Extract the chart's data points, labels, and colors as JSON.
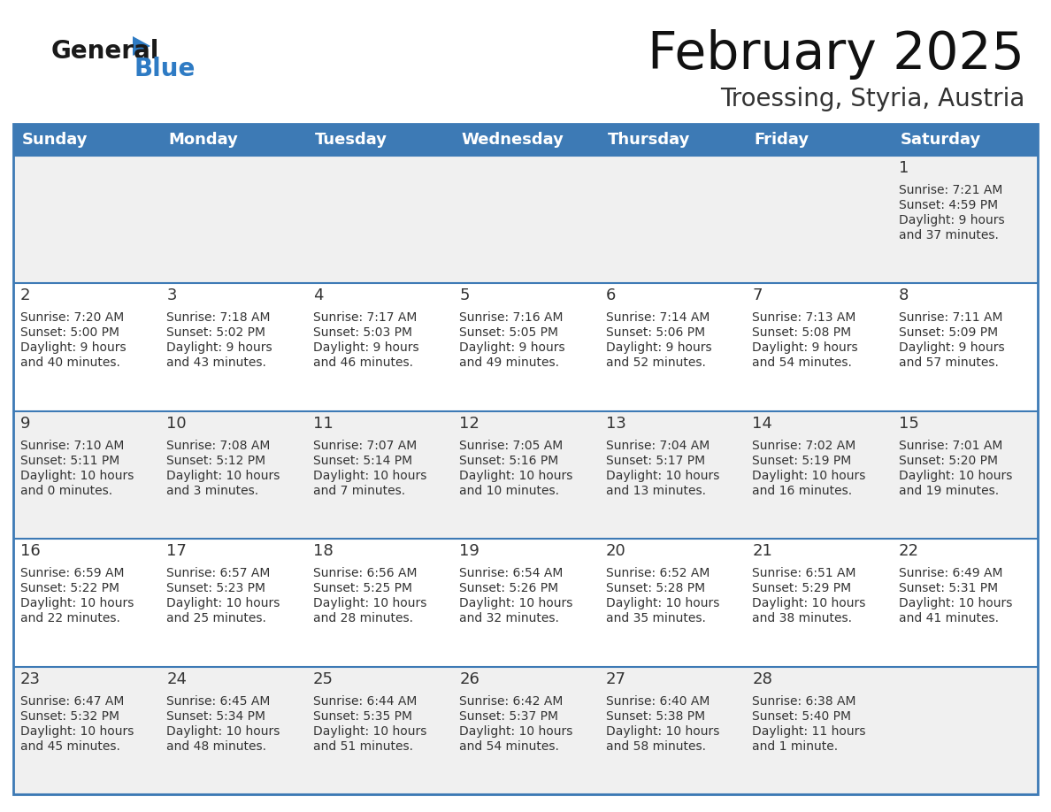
{
  "title": "February 2025",
  "subtitle": "Troessing, Styria, Austria",
  "days_of_week": [
    "Sunday",
    "Monday",
    "Tuesday",
    "Wednesday",
    "Thursday",
    "Friday",
    "Saturday"
  ],
  "header_bg": "#3d7ab5",
  "header_text": "#ffffff",
  "row_bg_even": "#f0f0f0",
  "row_bg_odd": "#ffffff",
  "border_color": "#3d7ab5",
  "text_color": "#333333",
  "calendar_data": [
    [
      null,
      null,
      null,
      null,
      null,
      null,
      {
        "day": "1",
        "sunrise": "7:21 AM",
        "sunset": "4:59 PM",
        "daylight_line1": "Daylight: 9 hours",
        "daylight_line2": "and 37 minutes."
      }
    ],
    [
      {
        "day": "2",
        "sunrise": "7:20 AM",
        "sunset": "5:00 PM",
        "daylight_line1": "Daylight: 9 hours",
        "daylight_line2": "and 40 minutes."
      },
      {
        "day": "3",
        "sunrise": "7:18 AM",
        "sunset": "5:02 PM",
        "daylight_line1": "Daylight: 9 hours",
        "daylight_line2": "and 43 minutes."
      },
      {
        "day": "4",
        "sunrise": "7:17 AM",
        "sunset": "5:03 PM",
        "daylight_line1": "Daylight: 9 hours",
        "daylight_line2": "and 46 minutes."
      },
      {
        "day": "5",
        "sunrise": "7:16 AM",
        "sunset": "5:05 PM",
        "daylight_line1": "Daylight: 9 hours",
        "daylight_line2": "and 49 minutes."
      },
      {
        "day": "6",
        "sunrise": "7:14 AM",
        "sunset": "5:06 PM",
        "daylight_line1": "Daylight: 9 hours",
        "daylight_line2": "and 52 minutes."
      },
      {
        "day": "7",
        "sunrise": "7:13 AM",
        "sunset": "5:08 PM",
        "daylight_line1": "Daylight: 9 hours",
        "daylight_line2": "and 54 minutes."
      },
      {
        "day": "8",
        "sunrise": "7:11 AM",
        "sunset": "5:09 PM",
        "daylight_line1": "Daylight: 9 hours",
        "daylight_line2": "and 57 minutes."
      }
    ],
    [
      {
        "day": "9",
        "sunrise": "7:10 AM",
        "sunset": "5:11 PM",
        "daylight_line1": "Daylight: 10 hours",
        "daylight_line2": "and 0 minutes."
      },
      {
        "day": "10",
        "sunrise": "7:08 AM",
        "sunset": "5:12 PM",
        "daylight_line1": "Daylight: 10 hours",
        "daylight_line2": "and 3 minutes."
      },
      {
        "day": "11",
        "sunrise": "7:07 AM",
        "sunset": "5:14 PM",
        "daylight_line1": "Daylight: 10 hours",
        "daylight_line2": "and 7 minutes."
      },
      {
        "day": "12",
        "sunrise": "7:05 AM",
        "sunset": "5:16 PM",
        "daylight_line1": "Daylight: 10 hours",
        "daylight_line2": "and 10 minutes."
      },
      {
        "day": "13",
        "sunrise": "7:04 AM",
        "sunset": "5:17 PM",
        "daylight_line1": "Daylight: 10 hours",
        "daylight_line2": "and 13 minutes."
      },
      {
        "day": "14",
        "sunrise": "7:02 AM",
        "sunset": "5:19 PM",
        "daylight_line1": "Daylight: 10 hours",
        "daylight_line2": "and 16 minutes."
      },
      {
        "day": "15",
        "sunrise": "7:01 AM",
        "sunset": "5:20 PM",
        "daylight_line1": "Daylight: 10 hours",
        "daylight_line2": "and 19 minutes."
      }
    ],
    [
      {
        "day": "16",
        "sunrise": "6:59 AM",
        "sunset": "5:22 PM",
        "daylight_line1": "Daylight: 10 hours",
        "daylight_line2": "and 22 minutes."
      },
      {
        "day": "17",
        "sunrise": "6:57 AM",
        "sunset": "5:23 PM",
        "daylight_line1": "Daylight: 10 hours",
        "daylight_line2": "and 25 minutes."
      },
      {
        "day": "18",
        "sunrise": "6:56 AM",
        "sunset": "5:25 PM",
        "daylight_line1": "Daylight: 10 hours",
        "daylight_line2": "and 28 minutes."
      },
      {
        "day": "19",
        "sunrise": "6:54 AM",
        "sunset": "5:26 PM",
        "daylight_line1": "Daylight: 10 hours",
        "daylight_line2": "and 32 minutes."
      },
      {
        "day": "20",
        "sunrise": "6:52 AM",
        "sunset": "5:28 PM",
        "daylight_line1": "Daylight: 10 hours",
        "daylight_line2": "and 35 minutes."
      },
      {
        "day": "21",
        "sunrise": "6:51 AM",
        "sunset": "5:29 PM",
        "daylight_line1": "Daylight: 10 hours",
        "daylight_line2": "and 38 minutes."
      },
      {
        "day": "22",
        "sunrise": "6:49 AM",
        "sunset": "5:31 PM",
        "daylight_line1": "Daylight: 10 hours",
        "daylight_line2": "and 41 minutes."
      }
    ],
    [
      {
        "day": "23",
        "sunrise": "6:47 AM",
        "sunset": "5:32 PM",
        "daylight_line1": "Daylight: 10 hours",
        "daylight_line2": "and 45 minutes."
      },
      {
        "day": "24",
        "sunrise": "6:45 AM",
        "sunset": "5:34 PM",
        "daylight_line1": "Daylight: 10 hours",
        "daylight_line2": "and 48 minutes."
      },
      {
        "day": "25",
        "sunrise": "6:44 AM",
        "sunset": "5:35 PM",
        "daylight_line1": "Daylight: 10 hours",
        "daylight_line2": "and 51 minutes."
      },
      {
        "day": "26",
        "sunrise": "6:42 AM",
        "sunset": "5:37 PM",
        "daylight_line1": "Daylight: 10 hours",
        "daylight_line2": "and 54 minutes."
      },
      {
        "day": "27",
        "sunrise": "6:40 AM",
        "sunset": "5:38 PM",
        "daylight_line1": "Daylight: 10 hours",
        "daylight_line2": "and 58 minutes."
      },
      {
        "day": "28",
        "sunrise": "6:38 AM",
        "sunset": "5:40 PM",
        "daylight_line1": "Daylight: 11 hours",
        "daylight_line2": "and 1 minute."
      },
      null
    ]
  ],
  "logo_color_general": "#1a1a1a",
  "logo_color_blue": "#2e7bc4",
  "logo_triangle_color": "#2e7bc4",
  "title_fontsize": 42,
  "subtitle_fontsize": 20,
  "header_fontsize": 13,
  "day_num_fontsize": 13,
  "cell_text_fontsize": 10
}
